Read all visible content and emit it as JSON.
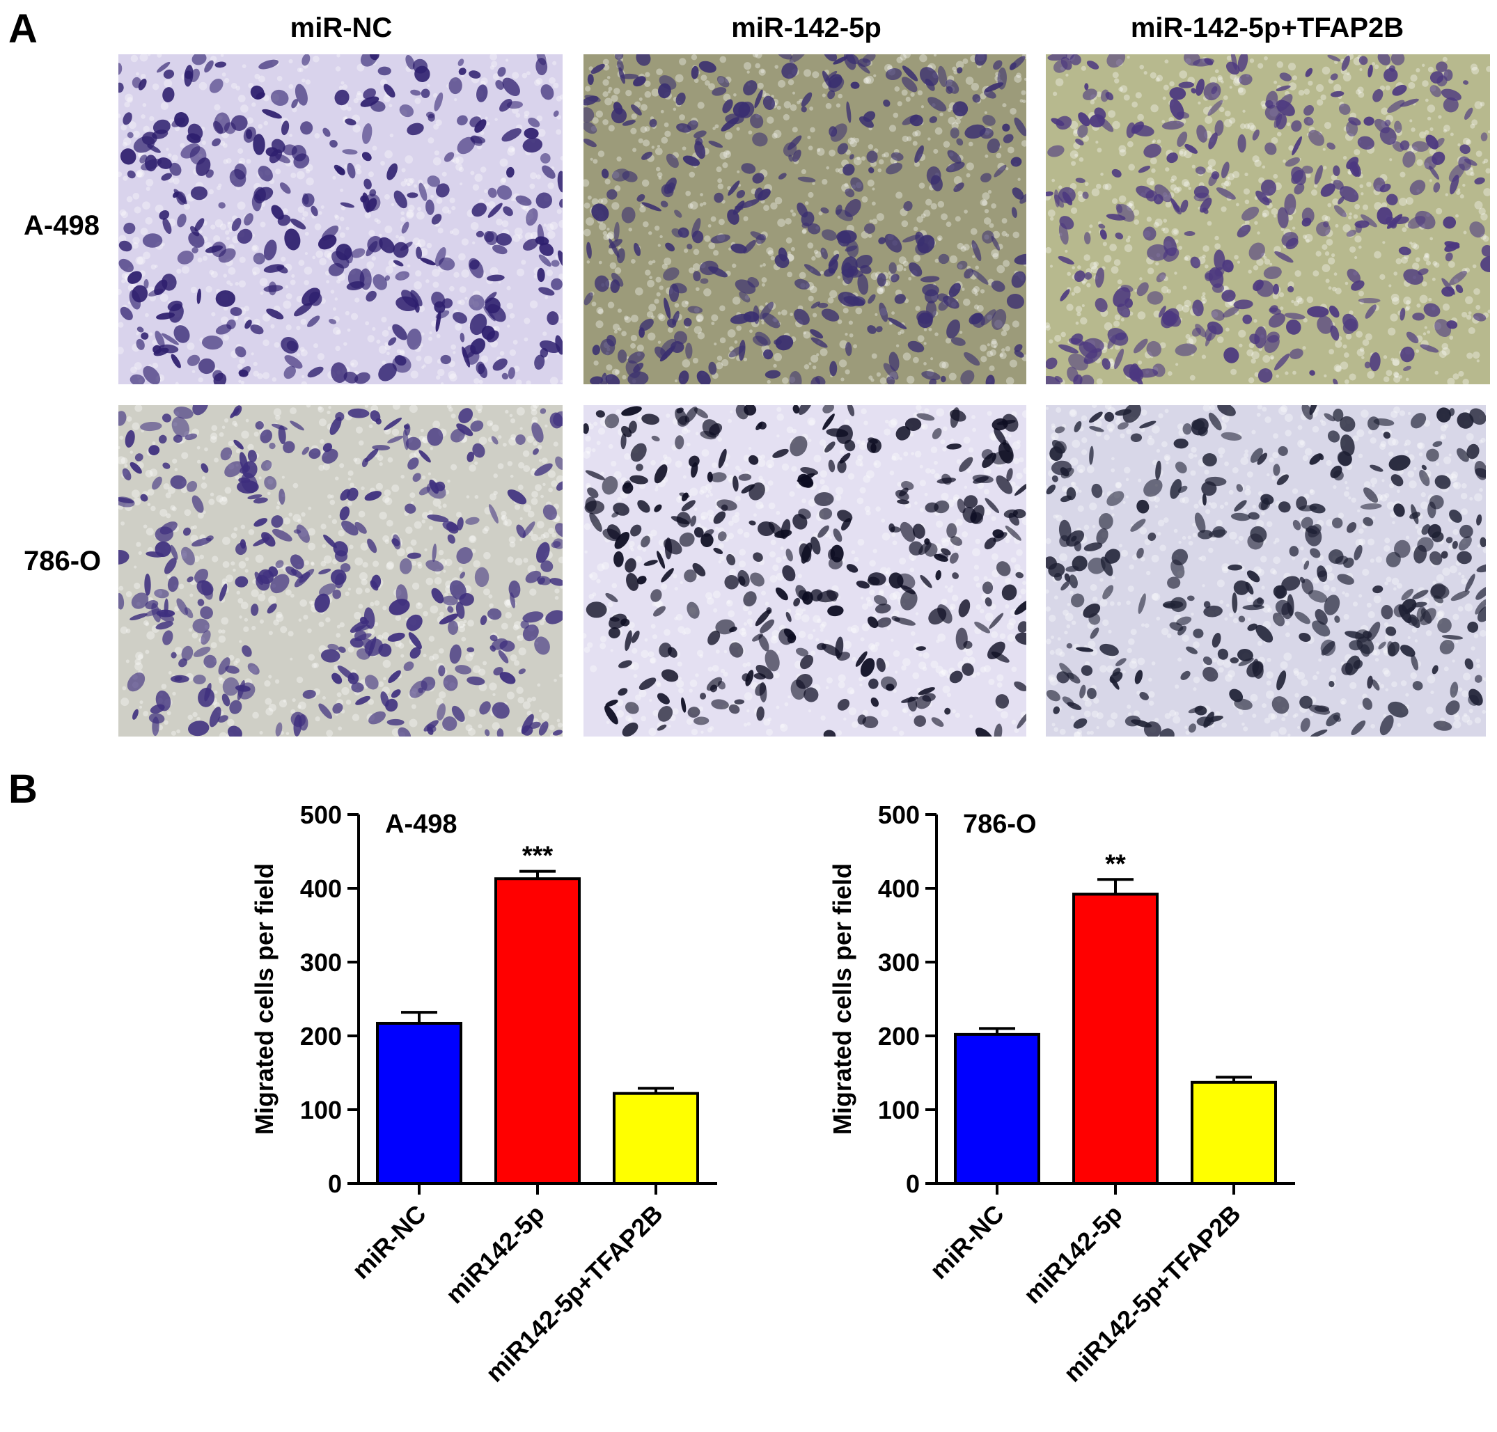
{
  "panel_labels": {
    "a": "A",
    "b": "B"
  },
  "panel_a": {
    "columns": [
      "miR-NC",
      "miR-142-5p",
      "miR-142-5p+TFAP2B"
    ],
    "rows": [
      "A-498",
      "786-O"
    ],
    "images": [
      {
        "row": "A-498",
        "column": "miR-NC",
        "bg": "#d9d3ec",
        "cell": "#2e1f6e",
        "seed": 11
      },
      {
        "row": "A-498",
        "column": "miR-142-5p",
        "bg": "#9c9b7a",
        "cell": "#3a2f70",
        "seed": 23
      },
      {
        "row": "A-498",
        "column": "miR-142-5p+TFAP2B",
        "bg": "#b7b98e",
        "cell": "#4c3880",
        "seed": 37
      },
      {
        "row": "786-O",
        "column": "miR-NC",
        "bg": "#cfcfc6",
        "cell": "#3e2f7e",
        "seed": 41
      },
      {
        "row": "786-O",
        "column": "miR-142-5p",
        "bg": "#e4e0f2",
        "cell": "#0d0d22",
        "seed": 53
      },
      {
        "row": "786-O",
        "column": "miR-142-5p+TFAP2B",
        "bg": "#d8d7e8",
        "cell": "#1e2034",
        "seed": 67
      }
    ]
  },
  "chart_data": [
    {
      "type": "bar",
      "title": "A-498",
      "ylabel": "Migrated cells per field",
      "ylim": [
        0,
        500
      ],
      "yticks": [
        0,
        100,
        200,
        300,
        400,
        500
      ],
      "categories": [
        "miR-NC",
        "miR142-5p",
        "miR142-5p+TFAP2B"
      ],
      "values": [
        217,
        413,
        122
      ],
      "errors": [
        15,
        10,
        7
      ],
      "colors": [
        "#0000ff",
        "#ff0000",
        "#ffff00"
      ],
      "annotations": [
        "",
        "***",
        ""
      ]
    },
    {
      "type": "bar",
      "title": "786-O",
      "ylabel": "Migrated cells per field",
      "ylim": [
        0,
        500
      ],
      "yticks": [
        0,
        100,
        200,
        300,
        400,
        500
      ],
      "categories": [
        "miR-NC",
        "miR142-5p",
        "miR142-5p+TFAP2B"
      ],
      "values": [
        202,
        392,
        137
      ],
      "errors": [
        8,
        20,
        7
      ],
      "colors": [
        "#0000ff",
        "#ff0000",
        "#ffff00"
      ],
      "annotations": [
        "",
        "**",
        ""
      ]
    }
  ]
}
